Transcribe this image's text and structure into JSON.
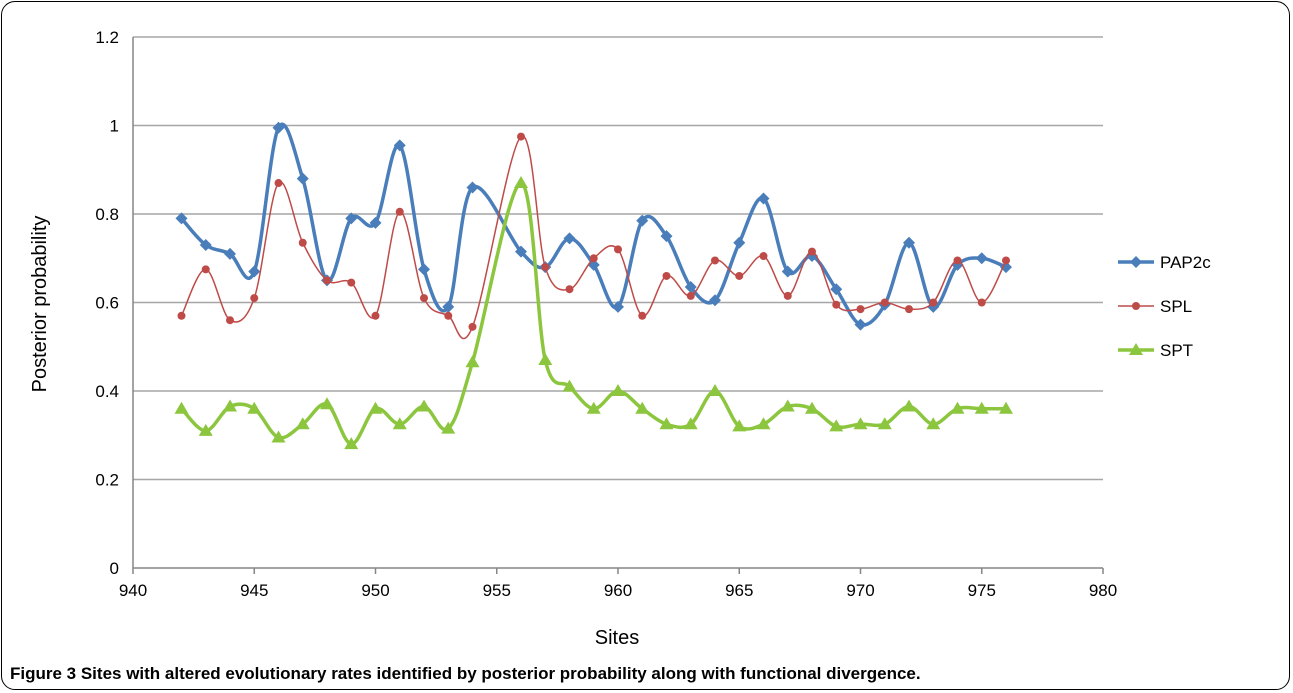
{
  "chart_data": {
    "type": "line",
    "xlabel": "Sites",
    "ylabel": "Posterior probability",
    "xlim": [
      940,
      980
    ],
    "ylim": [
      0,
      1.2
    ],
    "x_ticks": [
      "940",
      "945",
      "950",
      "955",
      "960",
      "965",
      "970",
      "975",
      "980"
    ],
    "y_ticks": [
      "0",
      "0.2",
      "0.4",
      "0.6",
      "0.8",
      "1",
      "1.2"
    ],
    "grid": "horizontal",
    "legend": "right",
    "x": [
      942,
      943,
      944,
      945,
      946,
      947,
      948,
      949,
      950,
      951,
      952,
      953,
      954,
      955,
      956,
      957,
      958,
      959,
      960,
      961,
      962,
      963,
      964,
      965,
      966,
      967,
      968,
      969,
      970,
      971,
      972,
      973,
      974,
      975,
      976
    ],
    "series": [
      {
        "name": "PAP2c",
        "color": "#4a7ebb",
        "marker": "diamond",
        "smooth": false,
        "values": [
          0.79,
          0.73,
          0.71,
          0.67,
          0.995,
          0.88,
          0.65,
          0.79,
          0.78,
          0.955,
          0.675,
          0.59,
          0.86,
          null,
          0.715,
          0.68,
          0.745,
          0.685,
          0.59,
          0.785,
          0.75,
          0.635,
          0.605,
          0.735,
          0.835,
          0.67,
          0.705,
          0.63,
          0.55,
          0.595,
          0.735,
          0.59,
          0.685,
          0.7,
          0.68
        ]
      },
      {
        "name": "SPL",
        "color": "#be4b48",
        "marker": "circle",
        "smooth": true,
        "values": [
          0.57,
          0.675,
          0.56,
          0.61,
          0.87,
          0.735,
          0.65,
          0.645,
          0.57,
          0.805,
          0.61,
          0.57,
          0.545,
          null,
          0.975,
          0.68,
          0.63,
          0.7,
          0.72,
          0.57,
          0.66,
          0.615,
          0.695,
          0.66,
          0.705,
          0.615,
          0.715,
          0.595,
          0.585,
          0.6,
          0.585,
          0.6,
          0.695,
          0.6,
          0.695
        ]
      },
      {
        "name": "SPT",
        "color": "#8cc63f",
        "marker": "triangle",
        "smooth": false,
        "values": [
          0.36,
          0.31,
          0.365,
          0.36,
          0.295,
          0.325,
          0.37,
          0.28,
          0.36,
          0.325,
          0.365,
          0.315,
          0.465,
          null,
          0.87,
          0.47,
          0.41,
          0.36,
          0.4,
          0.36,
          0.325,
          0.325,
          0.4,
          0.32,
          0.325,
          0.365,
          0.36,
          0.32,
          0.325,
          0.325,
          0.365,
          0.325,
          0.36,
          0.36,
          0.36
        ]
      }
    ]
  },
  "caption": {
    "label": "Figure 3",
    "text": " Sites with altered evolutionary rates identified by posterior probability along with functional divergence."
  }
}
